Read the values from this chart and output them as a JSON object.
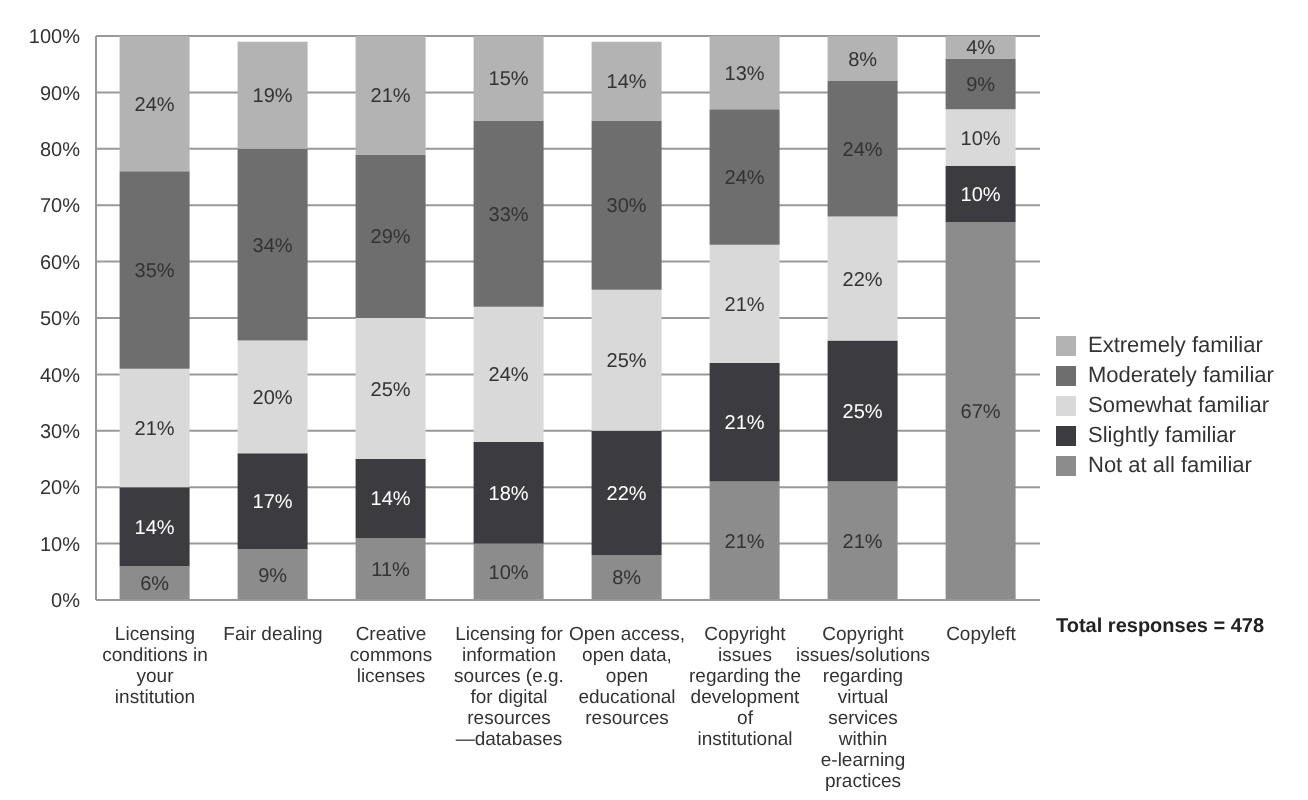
{
  "chart_data": {
    "type": "bar",
    "stacked": true,
    "categories": [
      "Licensing conditions in your institution",
      "Fair dealing",
      "Creative commons licenses",
      "Licensing for information sources (e.g. for digital resources —databases",
      "Open access, open data, open educational resources",
      "Copyright issues regarding the development of institutional",
      "Copyright issues/solutions regarding virtual services within e-learning practices",
      "Copyleft"
    ],
    "series": [
      {
        "name": "Not at all familiar",
        "color": "#8c8c8c",
        "values": [
          6,
          9,
          11,
          10,
          8,
          21,
          21,
          67
        ],
        "value_labels": [
          "6%",
          "9%",
          "11%",
          "10%",
          "8%",
          "21%",
          "21%",
          "67%"
        ]
      },
      {
        "name": "Slightly familiar",
        "color": "#3c3c40",
        "values": [
          14,
          17,
          14,
          18,
          22,
          21,
          25,
          10
        ],
        "value_labels": [
          "14%",
          "17%",
          "14%",
          "18%",
          "22%",
          "21%",
          "25%",
          "10%"
        ]
      },
      {
        "name": "Somewhat familiar",
        "color": "#d9d9d9",
        "values": [
          21,
          20,
          25,
          24,
          25,
          21,
          22,
          10
        ],
        "value_labels": [
          "21%",
          "20%",
          "25%",
          "24%",
          "25%",
          "21%",
          "22%",
          "10%"
        ]
      },
      {
        "name": "Moderately familiar",
        "color": "#6e6e6e",
        "values": [
          35,
          34,
          29,
          33,
          30,
          24,
          24,
          9
        ],
        "value_labels": [
          "35%",
          "34%",
          "29%",
          "33%",
          "30%",
          "24%",
          "24%",
          "9%"
        ]
      },
      {
        "name": "Extremely familiar",
        "color": "#b3b3b3",
        "values": [
          24,
          19,
          21,
          15,
          14,
          13,
          8,
          4
        ],
        "value_labels": [
          "24%",
          "19%",
          "21%",
          "15%",
          "14%",
          "13%",
          "8%",
          "4%"
        ]
      }
    ],
    "ylim": [
      0,
      100
    ],
    "yticks": [
      {
        "value": 0,
        "label": "0%"
      },
      {
        "value": 10,
        "label": "10%"
      },
      {
        "value": 20,
        "label": "20%"
      },
      {
        "value": 30,
        "label": "30%"
      },
      {
        "value": 40,
        "label": "40%"
      },
      {
        "value": 50,
        "label": "50%"
      },
      {
        "value": 60,
        "label": "60%"
      },
      {
        "value": 70,
        "label": "70%"
      },
      {
        "value": 80,
        "label": "80%"
      },
      {
        "value": 90,
        "label": "90%"
      },
      {
        "value": 100,
        "label": "100%"
      }
    ],
    "grid": "y",
    "legend": "right",
    "annotations": [
      "Total responses = 478"
    ]
  }
}
